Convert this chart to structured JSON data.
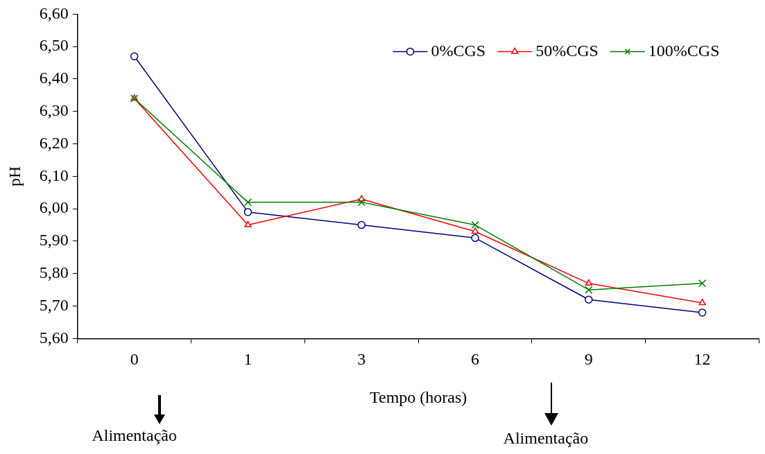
{
  "chart_data": {
    "type": "line",
    "categories": [
      "0",
      "1",
      "3",
      "6",
      "9",
      "12"
    ],
    "series": [
      {
        "name": "0%CGS",
        "color": "#000080",
        "marker": "circle",
        "values": [
          6.47,
          5.99,
          5.95,
          5.91,
          5.72,
          5.68
        ]
      },
      {
        "name": "50%CGS",
        "color": "#ff0000",
        "marker": "triangle",
        "values": [
          6.34,
          5.95,
          6.03,
          5.93,
          5.77,
          5.71
        ]
      },
      {
        "name": "100%CGS",
        "color": "#008000",
        "marker": "cross",
        "values": [
          6.34,
          6.02,
          6.02,
          5.95,
          5.75,
          5.77
        ]
      }
    ],
    "xlabel": "Tempo (horas)",
    "ylabel": "pH",
    "ylim": [
      5.6,
      6.6
    ],
    "yticks": [
      {
        "value": 5.6,
        "label": "5,60"
      },
      {
        "value": 5.7,
        "label": "5,70"
      },
      {
        "value": 5.8,
        "label": "5,80"
      },
      {
        "value": 5.9,
        "label": "5,90"
      },
      {
        "value": 6.0,
        "label": "6,00"
      },
      {
        "value": 6.1,
        "label": "6,10"
      },
      {
        "value": 6.2,
        "label": "6,20"
      },
      {
        "value": 6.3,
        "label": "6,30"
      },
      {
        "value": 6.4,
        "label": "6,40"
      },
      {
        "value": 6.5,
        "label": "6,50"
      },
      {
        "value": 6.6,
        "label": "6,60"
      }
    ],
    "annotations": [
      "Alimentação",
      "Alimentação"
    ],
    "legend": "top right",
    "grid": false,
    "line_style": "solid"
  }
}
